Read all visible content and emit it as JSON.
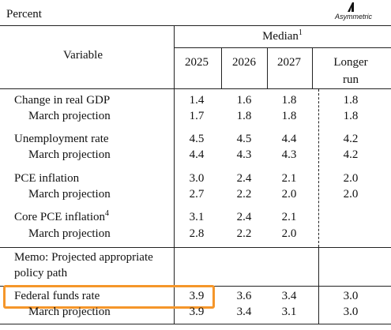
{
  "header": {
    "unit": "Percent",
    "logo": "Asymmetric"
  },
  "table": {
    "variable_label": "Variable",
    "median_label": "Median",
    "median_note": "1",
    "columns": [
      "2025",
      "2026",
      "2027",
      "Longer run"
    ],
    "rows": [
      {
        "label": "Change in real GDP",
        "values": [
          "1.4",
          "1.6",
          "1.8",
          "1.8"
        ]
      },
      {
        "label": "March projection",
        "values": [
          "1.7",
          "1.8",
          "1.8",
          "1.8"
        ]
      },
      {
        "label": "Unemployment rate",
        "values": [
          "4.5",
          "4.5",
          "4.4",
          "4.2"
        ]
      },
      {
        "label": "March projection",
        "values": [
          "4.4",
          "4.3",
          "4.3",
          "4.2"
        ]
      },
      {
        "label": "PCE inflation",
        "values": [
          "3.0",
          "2.4",
          "2.1",
          "2.0"
        ]
      },
      {
        "label": "March projection",
        "values": [
          "2.7",
          "2.2",
          "2.0",
          "2.0"
        ]
      },
      {
        "label": "Core PCE inflation",
        "note": "4",
        "values": [
          "3.1",
          "2.4",
          "2.1",
          null
        ]
      },
      {
        "label": "March projection",
        "values": [
          "2.8",
          "2.2",
          "2.0",
          null
        ]
      },
      {
        "label": "Memo: Projected appropriate policy path"
      },
      {
        "label": "Federal funds rate",
        "values": [
          "3.9",
          "3.6",
          "3.4",
          "3.0"
        ]
      },
      {
        "label": "March projection",
        "values": [
          "3.9",
          "3.4",
          "3.1",
          "3.0"
        ]
      }
    ]
  }
}
